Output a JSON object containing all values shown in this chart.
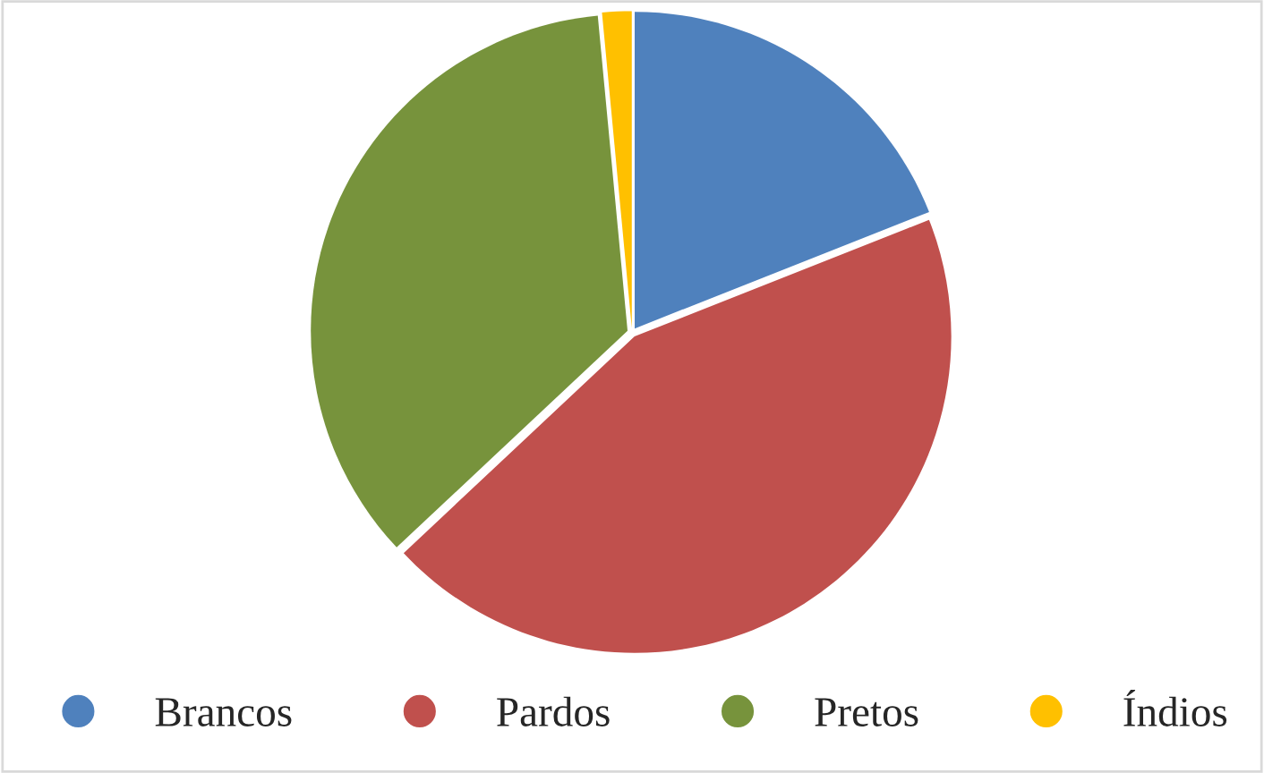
{
  "chart_data": {
    "type": "pie",
    "categories": [
      "Brancos",
      "Pardos",
      "Pretos",
      "Índios"
    ],
    "values": [
      19,
      44,
      35.5,
      1.5
    ],
    "colors": [
      "#4f81bd",
      "#c0504d",
      "#77933c",
      "#ffc000"
    ],
    "legend": "bottom"
  }
}
